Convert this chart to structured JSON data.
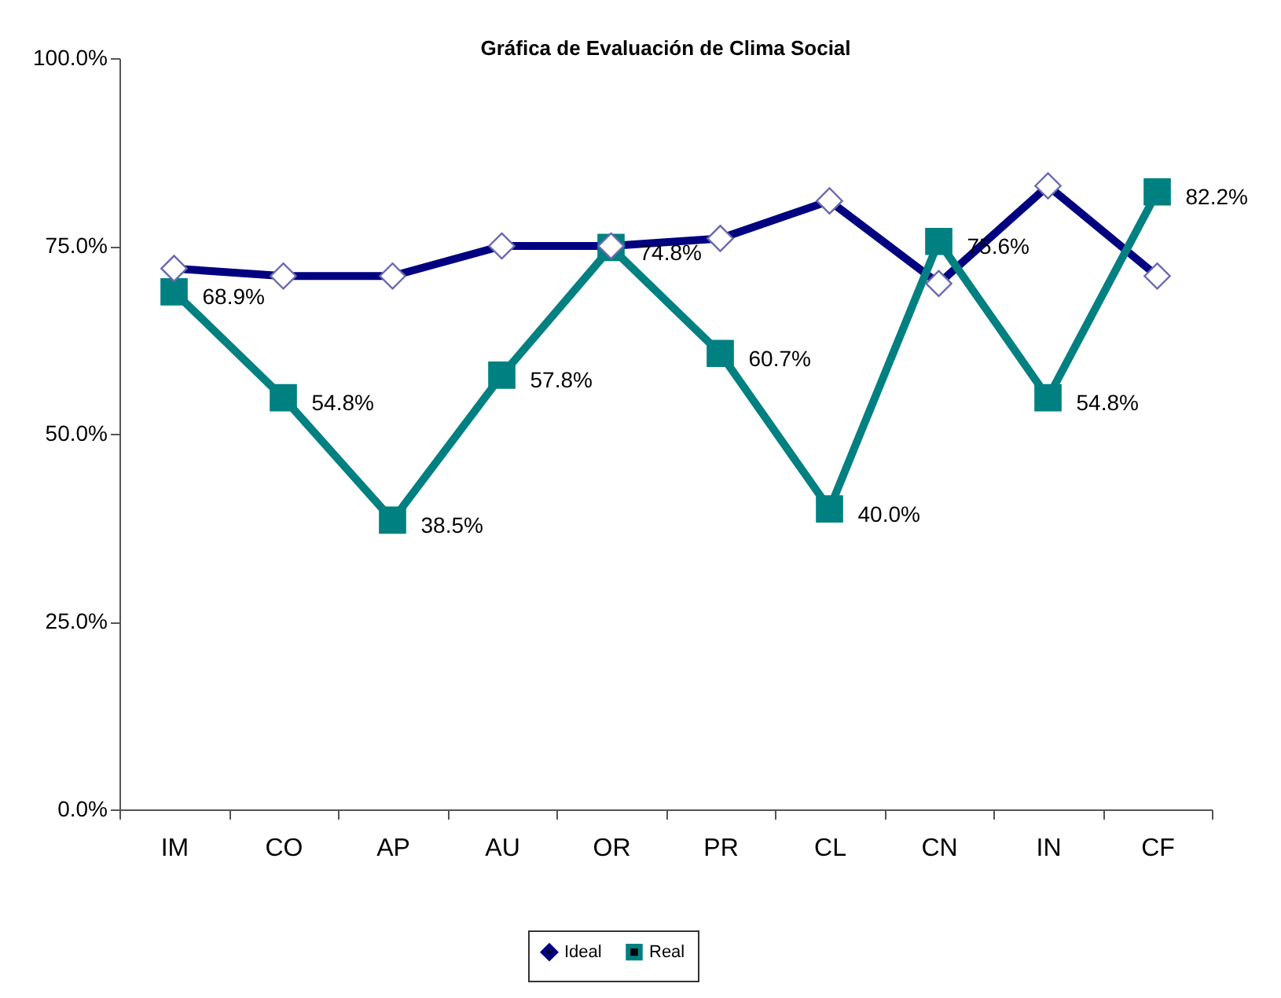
{
  "chart_data": {
    "type": "line",
    "title": "Gráfica de Evaluación de Clima Social",
    "categories": [
      "IM",
      "CO",
      "AP",
      "AU",
      "OR",
      "PR",
      "CL",
      "CN",
      "IN",
      "CF"
    ],
    "series": [
      {
        "name": "Ideal",
        "color": "#000080",
        "marker": "diamond",
        "values": [
          72,
          71,
          71,
          75,
          75,
          76,
          81,
          70,
          83,
          71
        ]
      },
      {
        "name": "Real",
        "color": "#008080",
        "marker": "square",
        "values": [
          68.9,
          54.8,
          38.5,
          57.8,
          74.8,
          60.7,
          40.0,
          75.6,
          54.8,
          82.2
        ],
        "value_labels": [
          "68.9%",
          "54.8%",
          "38.5%",
          "57.8%",
          "74.8%",
          "60.7%",
          "40.0%",
          "75.6%",
          "54.8%",
          "82.2%"
        ]
      }
    ],
    "ylim": [
      0,
      100
    ],
    "yticks": [
      {
        "value": 0,
        "label": "0.0%"
      },
      {
        "value": 25,
        "label": "25.0%"
      },
      {
        "value": 50,
        "label": "50.0%"
      },
      {
        "value": 75,
        "label": "75.0%"
      },
      {
        "value": 100,
        "label": "100.0%"
      }
    ],
    "grid": false,
    "legend": "bottom"
  }
}
